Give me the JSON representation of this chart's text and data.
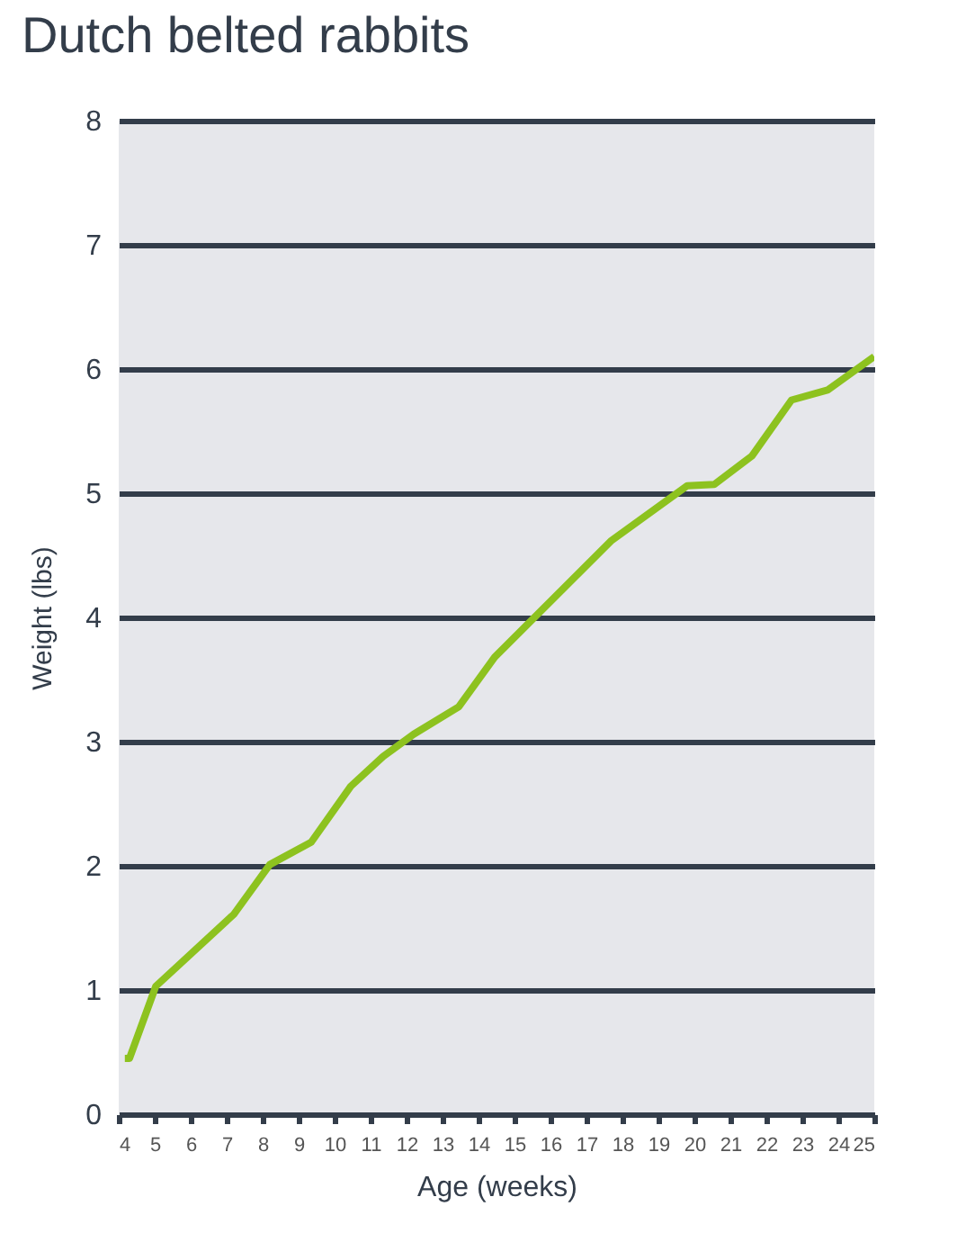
{
  "chart_data": {
    "type": "line",
    "title": "Dutch belted rabbits",
    "xlabel": "Age (weeks)",
    "ylabel": "Weight (lbs)",
    "x": [
      4.17,
      4.3,
      5.03,
      7.2,
      8.2,
      9.35,
      10.45,
      11.35,
      12.2,
      13.45,
      14.45,
      17.7,
      19.8,
      20.55,
      21.6,
      22.7,
      23.7,
      25
    ],
    "series": [
      {
        "color": "#8dc21f",
        "values": [
          0.45,
          0.45,
          1.03,
          1.61,
          2.01,
          2.19,
          2.64,
          2.88,
          3.06,
          3.28,
          3.68,
          4.62,
          5.06,
          5.07,
          5.3,
          5.75,
          5.83,
          6.1
        ]
      }
    ],
    "xlim": [
      4,
      25
    ],
    "xticks": [
      4,
      5,
      6,
      7,
      8,
      9,
      10,
      11,
      12,
      13,
      14,
      15,
      16,
      17,
      18,
      19,
      20,
      21,
      22,
      23,
      24,
      25
    ],
    "ylim": [
      0,
      8
    ],
    "yticks": [
      0,
      1,
      2,
      3,
      4,
      5,
      6,
      7,
      8
    ],
    "grid": "y",
    "marker": "none",
    "line_style": "solid"
  }
}
